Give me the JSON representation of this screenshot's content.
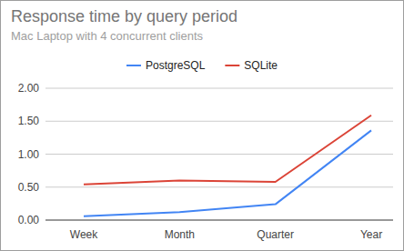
{
  "chart_data": {
    "type": "line",
    "title": "Response time by query period",
    "subtitle": "Mac Laptop with 4 concurrent clients",
    "categories": [
      "Week",
      "Month",
      "Quarter",
      "Year"
    ],
    "series": [
      {
        "name": "PostgreSQL",
        "color": "#4285f4",
        "values": [
          0.06,
          0.12,
          0.24,
          1.36
        ]
      },
      {
        "name": "SQLite",
        "color": "#db4437",
        "values": [
          0.54,
          0.6,
          0.58,
          1.59
        ]
      }
    ],
    "ylim": [
      0,
      2
    ],
    "yticks": [
      {
        "value": 0,
        "label": "0.00"
      },
      {
        "value": 0.5,
        "label": "0.50"
      },
      {
        "value": 1,
        "label": "1.00"
      },
      {
        "value": 1.5,
        "label": "1.50"
      },
      {
        "value": 2,
        "label": "2.00"
      }
    ],
    "grid": true,
    "legend": "top"
  }
}
